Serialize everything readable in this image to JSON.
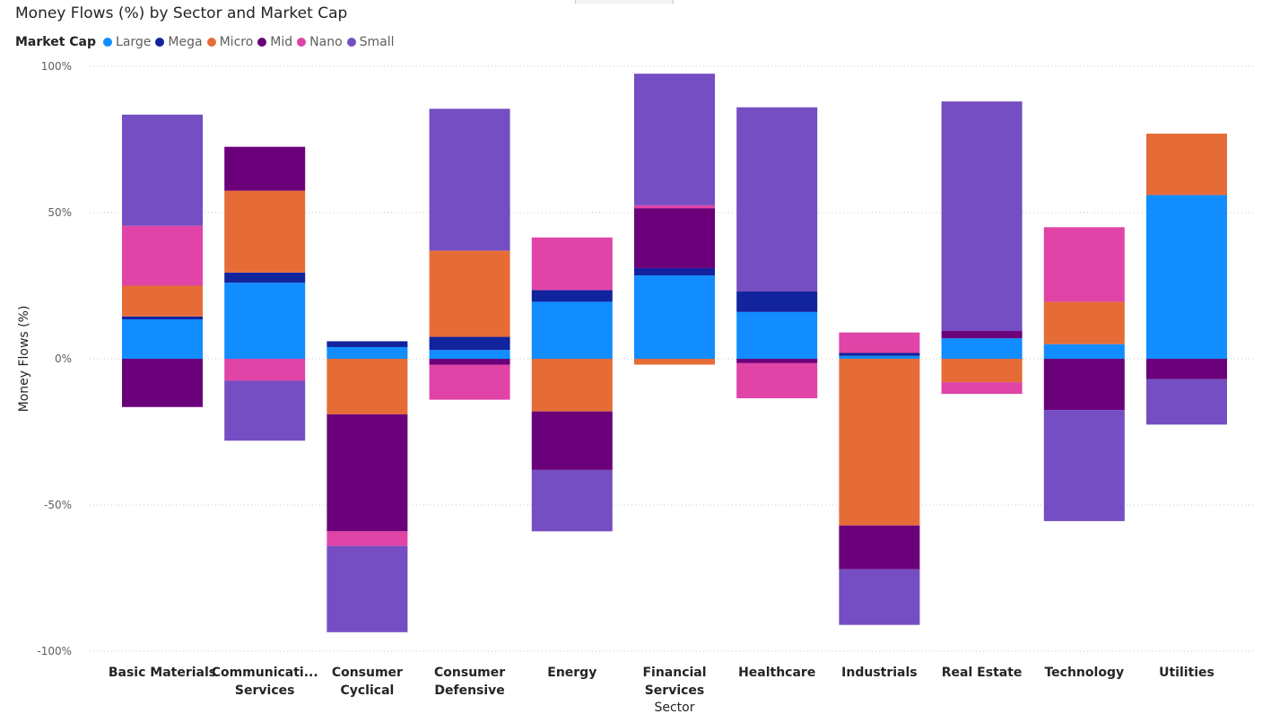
{
  "chart_data": {
    "type": "bar",
    "stacked": true,
    "title": "Money Flows (%) by Sector and Market Cap",
    "legend_title": "Market Cap",
    "legend_position": "top-left",
    "xlabel": "Sector",
    "ylabel": "Money Flows (%)",
    "ylim": [
      -100,
      100
    ],
    "yticks": [
      "100%",
      "50%",
      "0%",
      "-50%",
      "-100%"
    ],
    "ytick_values": [
      100,
      50,
      0,
      -50,
      -100
    ],
    "grid": true,
    "categories": [
      [
        "Basic Materials"
      ],
      [
        "Communicati...",
        "Services"
      ],
      [
        "Consumer",
        "Cyclical"
      ],
      [
        "Consumer",
        "Defensive"
      ],
      [
        "Energy"
      ],
      [
        "Financial",
        "Services"
      ],
      [
        "Healthcare"
      ],
      [
        "Industrials"
      ],
      [
        "Real Estate"
      ],
      [
        "Technology"
      ],
      [
        "Utilities"
      ]
    ],
    "series": [
      {
        "name": "Large",
        "color": "#118DFF",
        "values": [
          13.5,
          26,
          4,
          3,
          19.5,
          28.5,
          16,
          1,
          7,
          5,
          56
        ]
      },
      {
        "name": "Mega",
        "color": "#12239E",
        "values": [
          1,
          3.5,
          2,
          4.5,
          4,
          2.5,
          7,
          1,
          0,
          0,
          0
        ]
      },
      {
        "name": "Micro",
        "color": "#E66C37",
        "values": [
          10.5,
          28,
          -19,
          29.5,
          -18,
          -2,
          0,
          -57,
          -8,
          14.5,
          21
        ]
      },
      {
        "name": "Mid",
        "color": "#6B007B",
        "values": [
          -16.5,
          15,
          -40,
          -2,
          -20,
          20.5,
          -1.5,
          -15,
          2.5,
          -17.5,
          -7
        ]
      },
      {
        "name": "Nano",
        "color": "#E044A7",
        "values": [
          20.5,
          -7.5,
          -5,
          -12,
          18,
          1,
          -12,
          7,
          -4,
          25.5,
          0
        ]
      },
      {
        "name": "Small",
        "color": "#744EC2",
        "values": [
          38,
          -20.5,
          -29.5,
          48.5,
          -21,
          45,
          63,
          -19,
          78.5,
          -38,
          -15.5
        ]
      }
    ]
  }
}
